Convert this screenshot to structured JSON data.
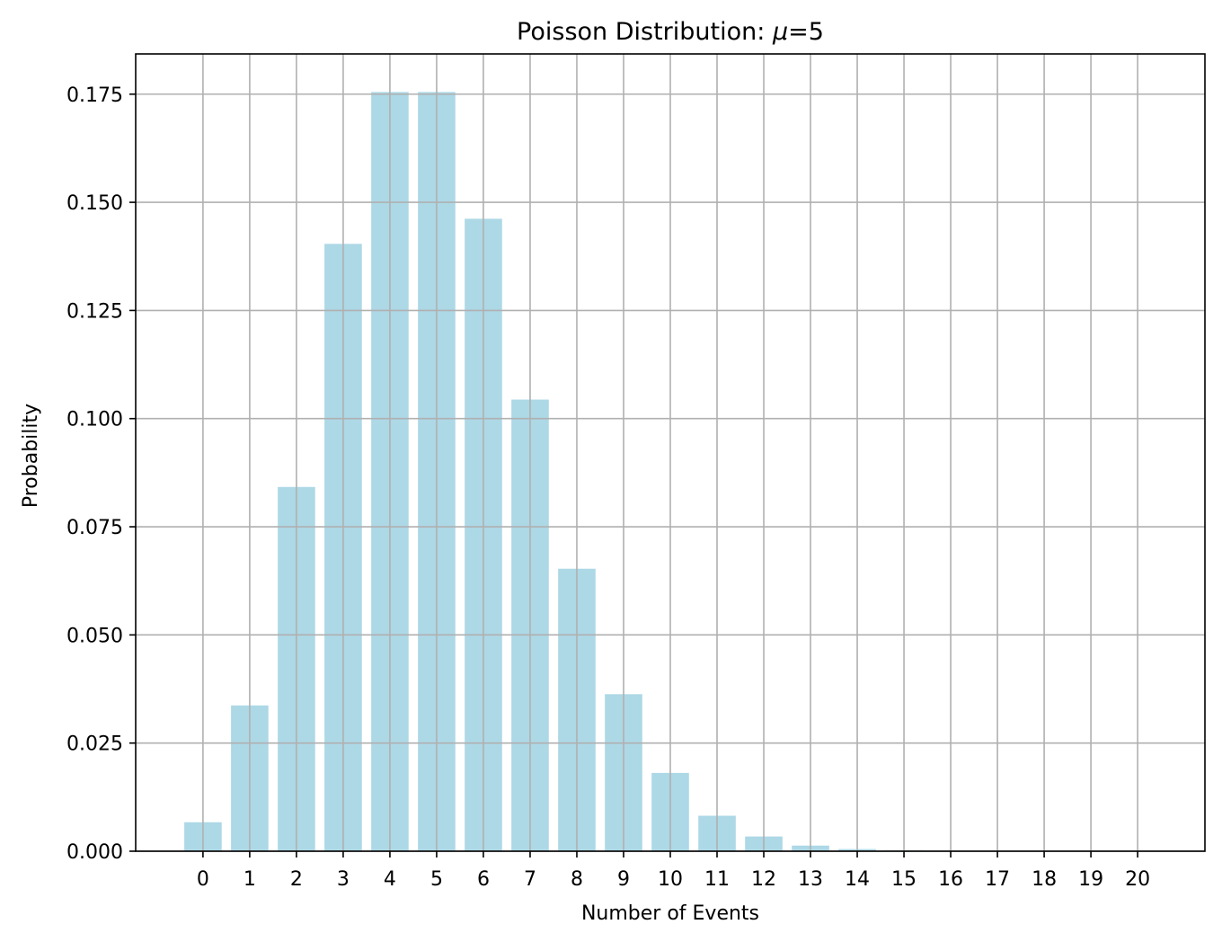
{
  "chart_data": {
    "type": "bar",
    "title": "Poisson Distribution: ",
    "title_mu": "μ",
    "title_suffix": "=5",
    "xlabel": "Number of Events",
    "ylabel": "Probability",
    "categories": [
      "0",
      "1",
      "2",
      "3",
      "4",
      "5",
      "6",
      "7",
      "8",
      "9",
      "10",
      "11",
      "12",
      "13",
      "14",
      "15",
      "16",
      "17",
      "18",
      "19",
      "20"
    ],
    "values": [
      0.0067,
      0.0337,
      0.0842,
      0.1404,
      0.1755,
      0.1755,
      0.1462,
      0.1044,
      0.0653,
      0.0363,
      0.0181,
      0.0082,
      0.0034,
      0.0013,
      0.0005,
      0.0002,
      0.0,
      0.0,
      0.0,
      0.0,
      0.0
    ],
    "ylim": [
      0,
      0.1843
    ],
    "xlim": [
      -1.44,
      21.44
    ],
    "yticks": [
      0.0,
      0.025,
      0.05,
      0.075,
      0.1,
      0.125,
      0.15,
      0.175
    ],
    "ytick_labels": [
      "0.000",
      "0.025",
      "0.050",
      "0.075",
      "0.100",
      "0.125",
      "0.150",
      "0.175"
    ],
    "grid": true,
    "bar_color": "#add8e6",
    "grid_color": "#b0b0b0"
  }
}
